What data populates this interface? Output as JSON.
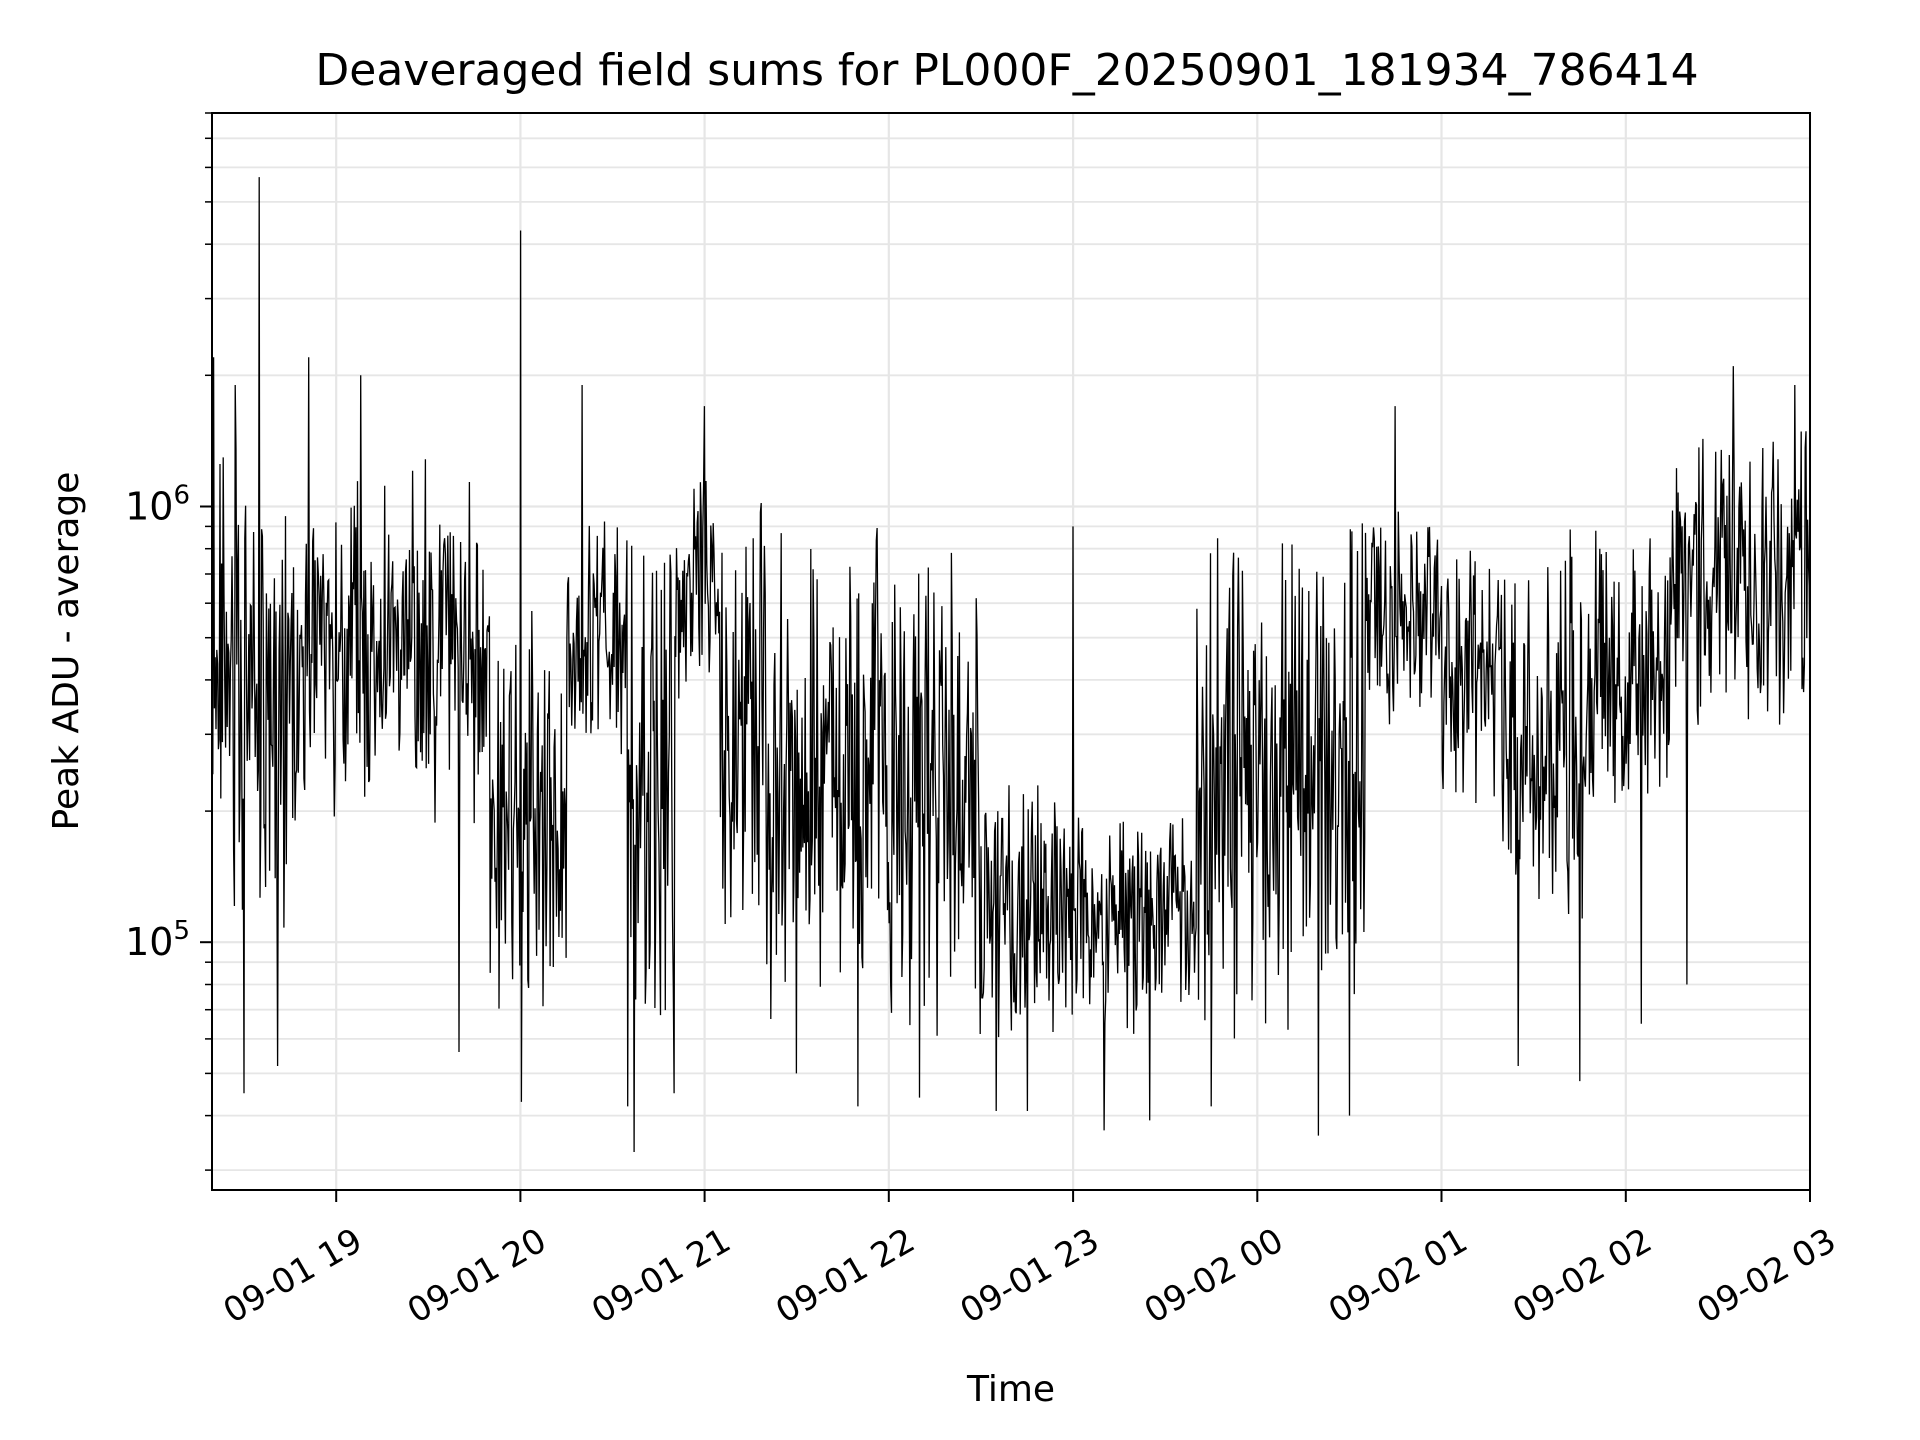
{
  "chart_data": {
    "type": "line",
    "title": "Deaveraged field sums for PL000F_20250901_181934_786414",
    "xlabel": "Time",
    "ylabel": "Peak ADU - average",
    "yscale": "log",
    "grid": true,
    "grid_minor": true,
    "line_color": "#000000",
    "grid_color": "#e6e6e6",
    "xlim": [
      "2025-09-01 18:19:34",
      "2025-09-02 03:00:00"
    ],
    "ylim": [
      27000,
      8000000
    ],
    "xticks": [
      {
        "time": "2025-09-01 19:00",
        "label": "09-01 19"
      },
      {
        "time": "2025-09-01 20:00",
        "label": "09-01 20"
      },
      {
        "time": "2025-09-01 21:00",
        "label": "09-01 21"
      },
      {
        "time": "2025-09-01 22:00",
        "label": "09-01 22"
      },
      {
        "time": "2025-09-01 23:00",
        "label": "09-01 23"
      },
      {
        "time": "2025-09-02 00:00",
        "label": "09-02 00"
      },
      {
        "time": "2025-09-02 01:00",
        "label": "09-02 01"
      },
      {
        "time": "2025-09-02 02:00",
        "label": "09-02 02"
      },
      {
        "time": "2025-09-02 03:00",
        "label": "09-02 03"
      }
    ],
    "yticks": [
      {
        "value": 100000,
        "base": "10",
        "exp": "5"
      },
      {
        "value": 1000000,
        "base": "10",
        "exp": "6"
      }
    ],
    "series": [
      {
        "segments": [
          {
            "from": "2025-09-01 18:19:34",
            "to": "2025-09-01 18:45",
            "low": 100000,
            "high": 1500000
          },
          {
            "from": "2025-09-01 18:45",
            "to": "2025-09-01 19:05",
            "low": 160000,
            "high": 1100000
          },
          {
            "from": "2025-09-01 19:05",
            "to": "2025-09-01 19:30",
            "low": 200000,
            "high": 1300000
          },
          {
            "from": "2025-09-01 19:30",
            "to": "2025-09-01 19:50",
            "low": 180000,
            "high": 1200000
          },
          {
            "from": "2025-09-01 19:50",
            "to": "2025-09-01 20:15",
            "low": 65000,
            "high": 700000
          },
          {
            "from": "2025-09-01 20:15",
            "to": "2025-09-01 20:35",
            "low": 250000,
            "high": 1000000
          },
          {
            "from": "2025-09-01 20:35",
            "to": "2025-09-01 20:50",
            "low": 55000,
            "high": 900000
          },
          {
            "from": "2025-09-01 20:50",
            "to": "2025-09-01 21:05",
            "low": 350000,
            "high": 1300000
          },
          {
            "from": "2025-09-01 21:05",
            "to": "2025-09-01 21:20",
            "low": 90000,
            "high": 1100000
          },
          {
            "from": "2025-09-01 21:20",
            "to": "2025-09-01 22:00",
            "low": 65000,
            "high": 900000
          },
          {
            "from": "2025-09-01 22:00",
            "to": "2025-09-01 22:30",
            "low": 60000,
            "high": 950000
          },
          {
            "from": "2025-09-01 22:30",
            "to": "2025-09-01 23:00",
            "low": 60000,
            "high": 250000
          },
          {
            "from": "2025-09-01 23:00",
            "to": "2025-09-01 23:40",
            "low": 60000,
            "high": 200000
          },
          {
            "from": "2025-09-01 23:40",
            "to": "2025-09-02 00:00",
            "low": 55000,
            "high": 900000
          },
          {
            "from": "2025-09-02 00:00",
            "to": "2025-09-02 00:35",
            "low": 60000,
            "high": 950000
          },
          {
            "from": "2025-09-02 00:35",
            "to": "2025-09-02 01:00",
            "low": 300000,
            "high": 1000000
          },
          {
            "from": "2025-09-02 01:00",
            "to": "2025-09-02 01:20",
            "low": 200000,
            "high": 800000
          },
          {
            "from": "2025-09-02 01:20",
            "to": "2025-09-02 01:50",
            "low": 90000,
            "high": 900000
          },
          {
            "from": "2025-09-02 01:50",
            "to": "2025-09-02 02:15",
            "low": 180000,
            "high": 900000
          },
          {
            "from": "2025-09-02 02:15",
            "to": "2025-09-02 03:00",
            "low": 300000,
            "high": 1500000
          }
        ],
        "extremes": [
          {
            "time": "2025-09-01 18:20",
            "value": 2200000
          },
          {
            "time": "2025-09-01 18:27",
            "value": 1900000
          },
          {
            "time": "2025-09-01 18:30",
            "value": 45000
          },
          {
            "time": "2025-09-01 18:35",
            "value": 5700000
          },
          {
            "time": "2025-09-01 18:41",
            "value": 52000
          },
          {
            "time": "2025-09-01 18:51",
            "value": 2200000
          },
          {
            "time": "2025-09-01 19:08",
            "value": 2000000
          },
          {
            "time": "2025-09-01 19:40",
            "value": 56000
          },
          {
            "time": "2025-09-01 20:00",
            "value": 4300000
          },
          {
            "time": "2025-09-01 20:00",
            "value": 43000
          },
          {
            "time": "2025-09-01 20:20",
            "value": 1900000
          },
          {
            "time": "2025-09-01 20:35",
            "value": 42000
          },
          {
            "time": "2025-09-01 20:37",
            "value": 33000
          },
          {
            "time": "2025-09-01 20:50",
            "value": 45000
          },
          {
            "time": "2025-09-01 21:00",
            "value": 1700000
          },
          {
            "time": "2025-09-01 21:30",
            "value": 50000
          },
          {
            "time": "2025-09-01 21:50",
            "value": 42000
          },
          {
            "time": "2025-09-01 22:10",
            "value": 44000
          },
          {
            "time": "2025-09-01 22:35",
            "value": 41000
          },
          {
            "time": "2025-09-01 22:45",
            "value": 41000
          },
          {
            "time": "2025-09-01 23:00",
            "value": 900000
          },
          {
            "time": "2025-09-01 23:10",
            "value": 37000
          },
          {
            "time": "2025-09-01 23:25",
            "value": 39000
          },
          {
            "time": "2025-09-01 23:45",
            "value": 42000
          },
          {
            "time": "2025-09-02 00:20",
            "value": 36000
          },
          {
            "time": "2025-09-02 00:30",
            "value": 40000
          },
          {
            "time": "2025-09-02 00:45",
            "value": 1700000
          },
          {
            "time": "2025-09-02 01:25",
            "value": 52000
          },
          {
            "time": "2025-09-02 01:45",
            "value": 48000
          },
          {
            "time": "2025-09-02 02:05",
            "value": 65000
          },
          {
            "time": "2025-09-02 02:20",
            "value": 80000
          },
          {
            "time": "2025-09-02 02:35",
            "value": 2100000
          },
          {
            "time": "2025-09-02 02:55",
            "value": 1900000
          }
        ]
      }
    ]
  }
}
